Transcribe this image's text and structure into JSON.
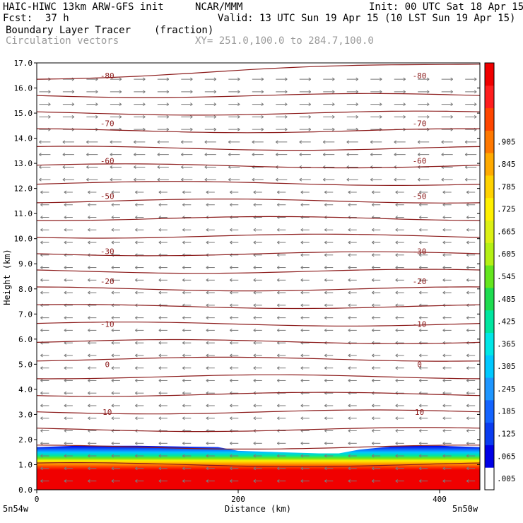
{
  "header": {
    "model": "HAIC-HIWC 13km ARW-GFS init",
    "org": "NCAR/MMM",
    "init": "Init: 00 UTC Sat 18 Apr 15",
    "fcst_label": "Fcst:",
    "fcst_value": "37 h",
    "valid": "Valid: 13 UTC Sun 19 Apr 15 (10 LST Sun 19 Apr 15)",
    "field": "Boundary Layer Tracer",
    "field_units": "(fraction)",
    "vectors": "Circulation vectors",
    "xy": "XY= 251.0,100.0 to 284.7,100.0"
  },
  "chart_data": {
    "type": "heatmap",
    "xlabel": "Distance (km)",
    "ylabel": "Height (km)",
    "xlim": [
      0,
      440
    ],
    "ylim": [
      0,
      17
    ],
    "x_ticks": [
      "0",
      "200",
      "400"
    ],
    "x_corner_left": "5n54w",
    "x_corner_right": "5n50w",
    "y_ticks": [
      "0.0",
      "1.0",
      "2.0",
      "3.0",
      "4.0",
      "5.0",
      "6.0",
      "7.0",
      "8.0",
      "9.0",
      "10.0",
      "11.0",
      "12.0",
      "13.0",
      "14.0",
      "15.0",
      "16.0",
      "17.0"
    ],
    "tracer_top_km": [
      [
        0,
        1.7
      ],
      [
        40,
        1.75
      ],
      [
        100,
        1.75
      ],
      [
        180,
        1.7
      ],
      [
        200,
        1.55
      ],
      [
        240,
        1.5
      ],
      [
        280,
        1.45
      ],
      [
        300,
        1.45
      ],
      [
        320,
        1.6
      ],
      [
        360,
        1.75
      ],
      [
        400,
        1.75
      ],
      [
        440,
        1.7
      ]
    ],
    "temperature_contours": [
      {
        "label": "-80",
        "height_km": 16.5
      },
      {
        "label": "-70",
        "height_km": 14.6
      },
      {
        "label": "-60",
        "height_km": 13.1
      },
      {
        "label": "-50",
        "height_km": 11.7
      },
      {
        "label": "-30",
        "height_km": 9.5
      },
      {
        "label": "-20",
        "height_km": 8.3
      },
      {
        "label": "-10",
        "height_km": 6.6
      },
      {
        "label": "0",
        "height_km": 5.0
      },
      {
        "label": "10",
        "height_km": 3.1
      }
    ],
    "colorbar": {
      "labels": [
        ".005",
        ".065",
        ".125",
        ".185",
        ".245",
        ".305",
        ".365",
        ".425",
        ".485",
        ".545",
        ".605",
        ".665",
        ".725",
        ".785",
        ".845",
        ".905"
      ],
      "colors": [
        "#ffffff",
        "#0000e6",
        "#0a3cf0",
        "#1464ff",
        "#1e96ff",
        "#00c8ff",
        "#00e6e6",
        "#00e6a0",
        "#1edc50",
        "#64e61e",
        "#b4f014",
        "#dcf014",
        "#fff000",
        "#ffd200",
        "#ffaa00",
        "#ff7800",
        "#ff4600",
        "#ff1e1e",
        "#f00000"
      ]
    }
  }
}
